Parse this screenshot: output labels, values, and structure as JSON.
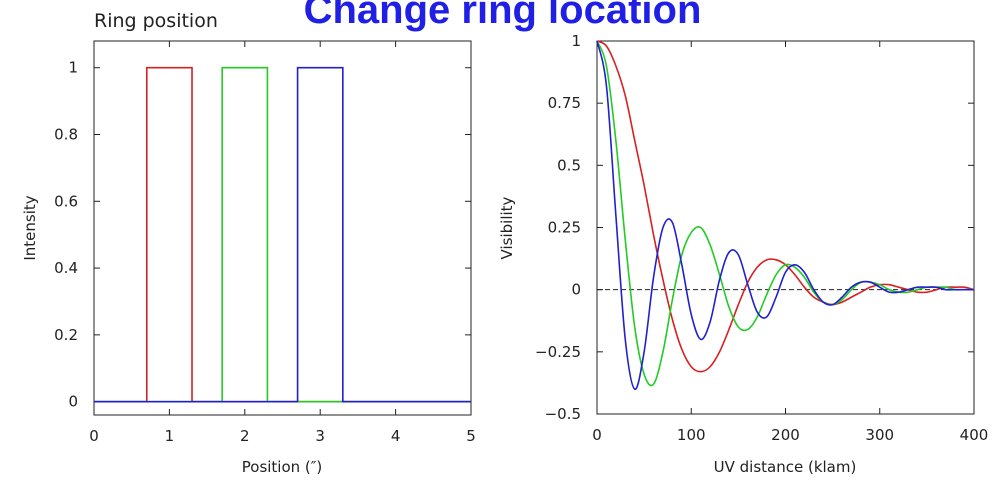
{
  "slide": {
    "title": "Change ring location"
  },
  "chart_data": [
    {
      "type": "line",
      "title": "Ring position",
      "xlabel": "Position (″)",
      "ylabel": "Intensity",
      "xlim": [
        0,
        5
      ],
      "ylim": [
        -0.04,
        1.08
      ],
      "xticks": [
        "0",
        "1",
        "2",
        "3",
        "4",
        "5"
      ],
      "yticks": [
        "0",
        "0.2",
        "0.4",
        "0.6",
        "0.8",
        "1"
      ],
      "series": [
        {
          "color": "#d92020",
          "x": [
            0,
            0.7,
            0.7,
            1.3,
            1.3,
            5
          ],
          "y": [
            0,
            0,
            1,
            1,
            0,
            0
          ]
        },
        {
          "color": "#22cc22",
          "x": [
            0,
            1.7,
            1.7,
            2.3,
            2.3,
            5
          ],
          "y": [
            0,
            0,
            1,
            1,
            0,
            0
          ]
        },
        {
          "color": "#2020d0",
          "x": [
            0,
            2.7,
            2.7,
            3.3,
            3.3,
            5
          ],
          "y": [
            0,
            0,
            1,
            1,
            0,
            0
          ]
        }
      ]
    },
    {
      "type": "line",
      "xlabel": "UV distance (klam)",
      "ylabel": "Visibility",
      "xlim": [
        0,
        400
      ],
      "ylim": [
        -0.5,
        1
      ],
      "xticks": [
        "0",
        "100",
        "200",
        "300",
        "400"
      ],
      "yticks": [
        "−0.5",
        "−0.25",
        "0",
        "0.25",
        "0.5",
        "0.75",
        "1"
      ],
      "zero_line": "dashed",
      "series": [
        {
          "color": "#d92020",
          "x": [
            0,
            10,
            20,
            30,
            40,
            50,
            60,
            70,
            80,
            90,
            100,
            110,
            120,
            130,
            140,
            150,
            160,
            170,
            180,
            190,
            200,
            210,
            220,
            230,
            240,
            250,
            260,
            270,
            280,
            290,
            300,
            310,
            320,
            330,
            340,
            350,
            360,
            370,
            380,
            390,
            400
          ],
          "y": [
            1,
            0.98,
            0.9,
            0.78,
            0.6,
            0.42,
            0.22,
            0.04,
            -0.12,
            -0.24,
            -0.31,
            -0.33,
            -0.31,
            -0.25,
            -0.16,
            -0.06,
            0.03,
            0.09,
            0.12,
            0.12,
            0.1,
            0.06,
            0.01,
            -0.03,
            -0.05,
            -0.06,
            -0.05,
            -0.03,
            -0.01,
            0.01,
            0.02,
            0.02,
            0.01,
            0,
            -0.01,
            -0.01,
            0,
            0.01,
            0.01,
            0.01,
            0
          ]
        },
        {
          "color": "#22cc22",
          "x": [
            0,
            10,
            20,
            30,
            40,
            50,
            60,
            70,
            80,
            90,
            100,
            110,
            120,
            130,
            140,
            150,
            160,
            170,
            180,
            190,
            200,
            210,
            220,
            230,
            240,
            250,
            260,
            270,
            280,
            290,
            300,
            310,
            320,
            330,
            340,
            350,
            360,
            370,
            380,
            390,
            400
          ],
          "y": [
            1,
            0.9,
            0.6,
            0.2,
            -0.15,
            -0.34,
            -0.38,
            -0.25,
            -0.04,
            0.14,
            0.23,
            0.25,
            0.18,
            0.06,
            -0.07,
            -0.15,
            -0.16,
            -0.11,
            -0.02,
            0.06,
            0.1,
            0.09,
            0.05,
            -0.01,
            -0.05,
            -0.06,
            -0.04,
            0,
            0.03,
            0.03,
            0.02,
            0,
            -0.01,
            -0.01,
            0,
            0.01,
            0.01,
            0.01,
            0,
            0,
            0
          ]
        },
        {
          "color": "#2020d0",
          "x": [
            0,
            10,
            20,
            30,
            40,
            50,
            60,
            70,
            80,
            90,
            100,
            110,
            120,
            130,
            140,
            150,
            160,
            170,
            180,
            190,
            200,
            210,
            220,
            230,
            240,
            250,
            260,
            270,
            280,
            290,
            300,
            310,
            320,
            330,
            340,
            350,
            360,
            370,
            380,
            390,
            400
          ],
          "y": [
            1,
            0.82,
            0.3,
            -0.2,
            -0.4,
            -0.25,
            0.05,
            0.25,
            0.27,
            0.1,
            -0.1,
            -0.2,
            -0.13,
            0.04,
            0.15,
            0.14,
            0.02,
            -0.09,
            -0.11,
            -0.03,
            0.07,
            0.1,
            0.07,
            0,
            -0.05,
            -0.06,
            -0.03,
            0.01,
            0.03,
            0.03,
            0.01,
            -0.01,
            -0.01,
            0,
            0.01,
            0.01,
            0.01,
            0,
            0,
            0,
            0
          ]
        }
      ]
    }
  ]
}
